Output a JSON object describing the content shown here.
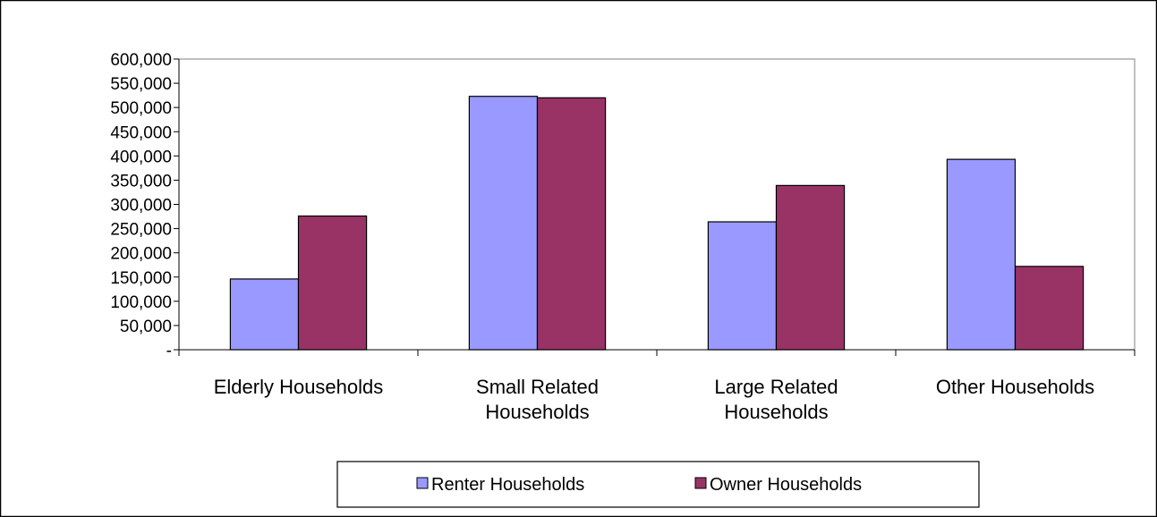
{
  "chart_data": {
    "type": "bar",
    "title": "",
    "xlabel": "",
    "ylabel": "",
    "categories": [
      [
        "Elderly Households"
      ],
      [
        "Small Related",
        "Households"
      ],
      [
        "Large Related",
        "Households"
      ],
      [
        "Other Households"
      ]
    ],
    "series": [
      {
        "name": "Renter Households",
        "color": "#9999FF",
        "values": [
          146000,
          523000,
          264000,
          393000
        ]
      },
      {
        "name": "Owner Households",
        "color": "#993366",
        "values": [
          276000,
          520000,
          339000,
          172000
        ]
      }
    ],
    "ylim": [
      0,
      600000
    ],
    "y_ticks": [
      {
        "value": 0,
        "label": "-"
      },
      {
        "value": 50000,
        "label": "50,000"
      },
      {
        "value": 100000,
        "label": "100,000"
      },
      {
        "value": 150000,
        "label": "150,000"
      },
      {
        "value": 200000,
        "label": "200,000"
      },
      {
        "value": 250000,
        "label": "250,000"
      },
      {
        "value": 300000,
        "label": "300,000"
      },
      {
        "value": 350000,
        "label": "350,000"
      },
      {
        "value": 400000,
        "label": "400,000"
      },
      {
        "value": 450000,
        "label": "450,000"
      },
      {
        "value": 500000,
        "label": "500,000"
      },
      {
        "value": 550000,
        "label": "550,000"
      },
      {
        "value": 600000,
        "label": "600,000"
      }
    ],
    "grid": false,
    "legend_position": "bottom"
  }
}
